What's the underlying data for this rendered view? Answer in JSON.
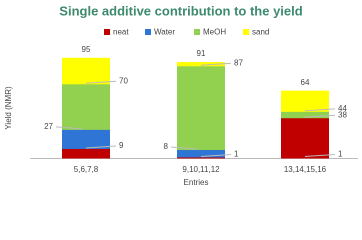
{
  "chart_data": {
    "type": "bar",
    "title": "Single additive contribution to the yield",
    "x_label": "Entries",
    "y_label": "Yield (NMR)",
    "categories": [
      "5,6,7,8",
      "9,10,11,12",
      "13,14,15,16"
    ],
    "series": [
      {
        "name": "neat",
        "color": "#c00000",
        "values": [
          9,
          1,
          38
        ]
      },
      {
        "name": "Water",
        "color": "#2e75d6",
        "values": [
          27,
          8,
          1
        ]
      },
      {
        "name": "MeOH",
        "color": "#92d050",
        "values": [
          70,
          87,
          44
        ]
      },
      {
        "name": "sand",
        "color": "#ffff00",
        "values": [
          95,
          91,
          64
        ]
      }
    ],
    "ylim": [
      0,
      100
    ]
  }
}
